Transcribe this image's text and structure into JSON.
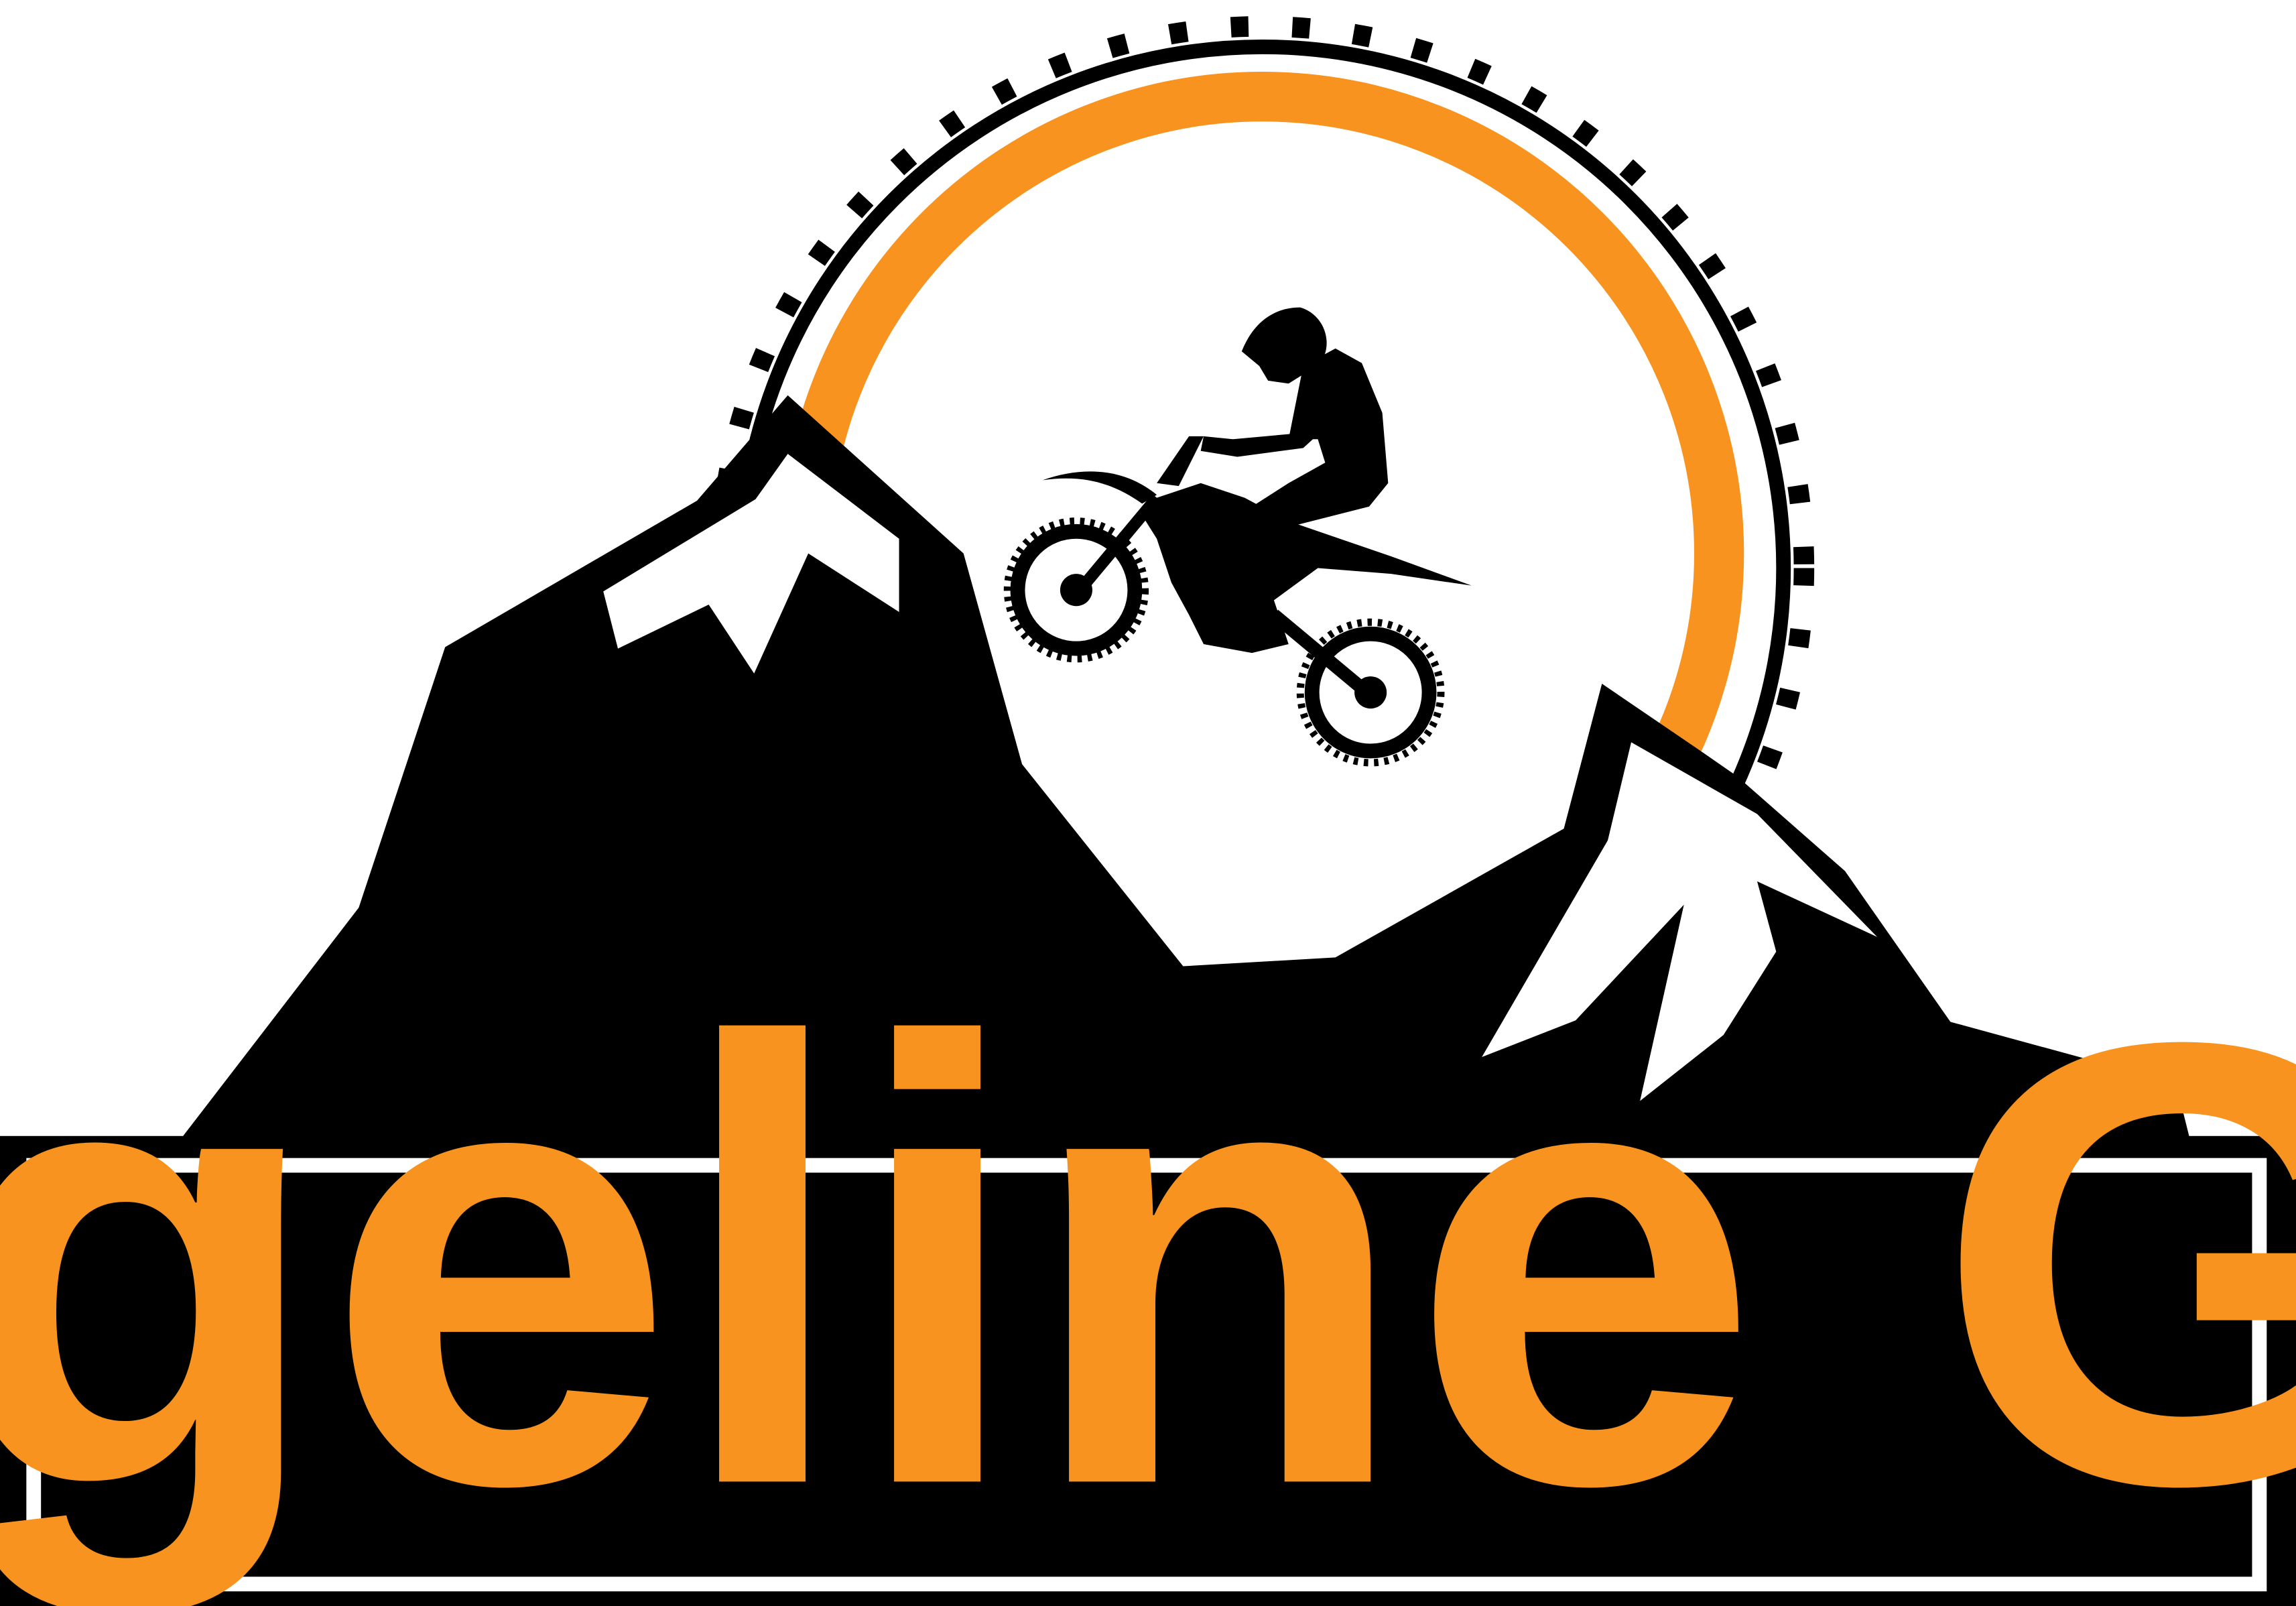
{
  "logo": {
    "brand_name": "Ridgeline Gear",
    "emblem": "dirt-bike-rider-over-mountains",
    "colors": {
      "primary": "#000000",
      "accent": "#f7931e",
      "background": "#ffffff"
    }
  }
}
